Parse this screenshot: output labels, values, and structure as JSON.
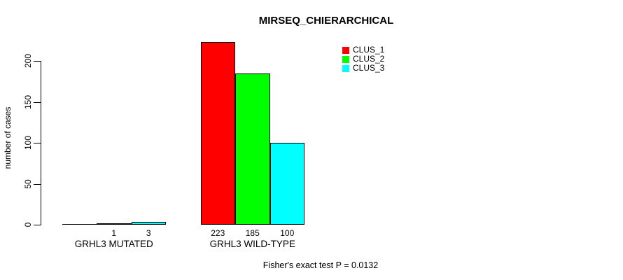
{
  "chart_data": {
    "type": "bar",
    "title": "MIRSEQ_CHIERARCHICAL",
    "ylabel": "number of cases",
    "xlabel": "",
    "categories": [
      "GRHL3 MUTATED",
      "GRHL3 WILD-TYPE"
    ],
    "series": [
      {
        "name": "CLUS_1",
        "color": "#FF0000",
        "values": [
          0,
          223
        ]
      },
      {
        "name": "CLUS_2",
        "color": "#00FF00",
        "values": [
          1,
          185
        ]
      },
      {
        "name": "CLUS_3",
        "color": "#00FFFF",
        "values": [
          3,
          100
        ]
      }
    ],
    "bar_value_labels": [
      [
        "",
        "1",
        "3"
      ],
      [
        "223",
        "185",
        "100"
      ]
    ],
    "yticks": [
      0,
      50,
      100,
      150,
      200
    ],
    "ylim": [
      0,
      225
    ],
    "grid": false,
    "legend_position": "top-right",
    "annotation": "Fisher's exact test P = 0.0132"
  },
  "colors": {
    "axis": "#000000",
    "text": "#000000",
    "background": "#FFFFFF"
  }
}
